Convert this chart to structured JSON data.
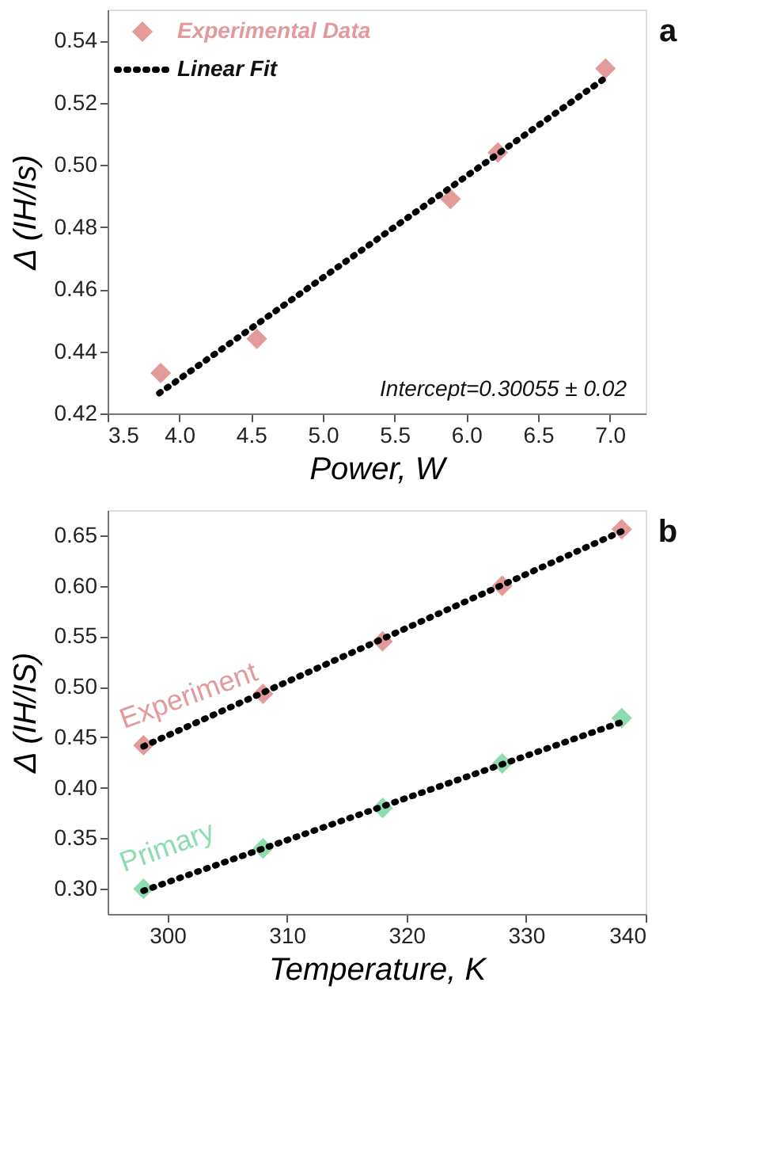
{
  "chart_data": [
    {
      "type": "scatter",
      "xlabel": "Power, W",
      "ylabel": "Δ (IH/Is)",
      "xlim": [
        3.5,
        7.25
      ],
      "xticks": [
        {
          "value": 3.5,
          "label": "3.5"
        },
        {
          "value": 4.0,
          "label": "4.0"
        },
        {
          "value": 4.5,
          "label": "4.5"
        },
        {
          "value": 5.0,
          "label": "5.0"
        },
        {
          "value": 5.5,
          "label": "5.5"
        },
        {
          "value": 6.0,
          "label": "6.0"
        },
        {
          "value": 6.5,
          "label": "6.5"
        },
        {
          "value": 7.0,
          "label": "7.0"
        }
      ],
      "ylim": [
        0.42,
        0.55
      ],
      "yticks": [
        0.42,
        0.44,
        0.46,
        0.48,
        {
          "value": 0.5,
          "label": "0.50"
        },
        0.52,
        0.54
      ],
      "grid": false,
      "legend": "top left",
      "series": [
        {
          "name": "Experimental Data",
          "type": "scatter",
          "color": "#e39a9a",
          "marker": "diamond",
          "x": [
            3.87,
            4.54,
            5.89,
            6.22,
            6.97
          ],
          "values": [
            0.433,
            0.444,
            0.489,
            0.504,
            0.531
          ]
        },
        {
          "name": "Linear Fit",
          "type": "line",
          "color": "#000000",
          "line_style": "dotted",
          "x": [
            3.86,
            6.97
          ],
          "values": [
            0.4265,
            0.528
          ]
        }
      ],
      "annotations": [
        "a",
        "Intercept=0.30055 ± 0.02"
      ]
    },
    {
      "type": "scatter",
      "xlabel": "Temperature, K",
      "ylabel": "Δ (IH/IS)",
      "xlim": [
        295,
        340
      ],
      "xticks": [
        300,
        310,
        320,
        330,
        340
      ],
      "ylim": [
        0.275,
        0.675
      ],
      "yticks": [
        {
          "value": 0.3,
          "label": "0.30"
        },
        0.35,
        {
          "value": 0.4,
          "label": "0.40"
        },
        0.45,
        {
          "value": 0.5,
          "label": "0.50"
        },
        0.55,
        {
          "value": 0.6,
          "label": "0.60"
        },
        0.65
      ],
      "grid": false,
      "legend": false,
      "series": [
        {
          "name": "Experiment",
          "type": "scatter",
          "color": "#e39a9a",
          "marker": "diamond",
          "x": [
            298,
            308,
            318,
            328,
            338
          ],
          "values": [
            0.442,
            0.493,
            0.545,
            0.6,
            0.656
          ]
        },
        {
          "name": "Primary",
          "type": "scatter",
          "color": "#8fdcb0",
          "marker": "diamond",
          "x": [
            298,
            308,
            318,
            328,
            338
          ],
          "values": [
            0.3,
            0.34,
            0.38,
            0.424,
            0.469
          ]
        },
        {
          "type": "line",
          "color": "#000000",
          "line_style": "dotted",
          "x": [
            298,
            338
          ],
          "values": [
            0.441,
            0.654
          ]
        },
        {
          "type": "line",
          "color": "#000000",
          "line_style": "dotted",
          "x": [
            298,
            338
          ],
          "values": [
            0.298,
            0.465
          ]
        }
      ],
      "annotations": [
        "b"
      ]
    }
  ]
}
